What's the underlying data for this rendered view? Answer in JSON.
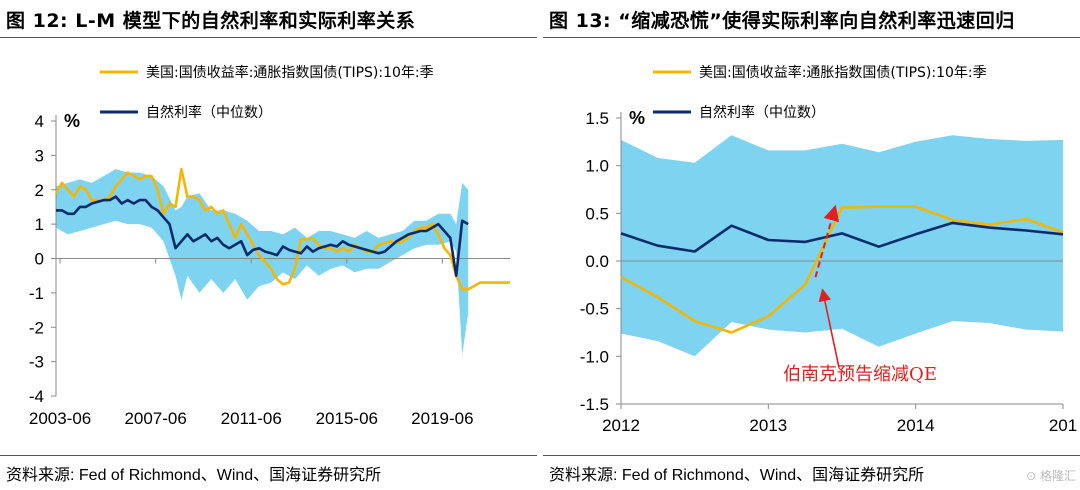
{
  "left": {
    "title": "图 12:  L-M 模型下的自然利率和实际利率关系",
    "source": "资料来源:  Fed of Richmond、Wind、国海证券研究所",
    "chart_data": {
      "type": "line",
      "unit_label": "%",
      "ylim": [
        -4,
        4
      ],
      "yticks": [
        "4",
        "3",
        "2",
        "1",
        "0",
        "-1",
        "-2",
        "-3",
        "-4"
      ],
      "yticks_values": [
        4,
        3,
        2,
        1,
        0,
        -1,
        -2,
        -3,
        -4
      ],
      "xlim": [
        2003.25,
        2022.25
      ],
      "xticks": [
        "2003-06",
        "2007-06",
        "2011-06",
        "2015-06",
        "2019-06"
      ],
      "xticks_values": [
        2003.42,
        2007.42,
        2011.42,
        2015.42,
        2019.42
      ],
      "series": [
        {
          "name": "美国:国债收益率:通胀指数国债(TIPS):10年:季",
          "color": "#f2b705",
          "x": [
            2003.25,
            2003.5,
            2003.75,
            2004.0,
            2004.25,
            2004.5,
            2004.75,
            2005.0,
            2005.25,
            2005.5,
            2005.75,
            2006.0,
            2006.25,
            2006.5,
            2006.75,
            2007.0,
            2007.25,
            2007.5,
            2007.75,
            2008.0,
            2008.25,
            2008.5,
            2008.75,
            2009.0,
            2009.25,
            2009.5,
            2009.75,
            2010.0,
            2010.25,
            2010.5,
            2010.75,
            2011.0,
            2011.25,
            2011.5,
            2011.75,
            2012.0,
            2012.25,
            2012.5,
            2012.75,
            2013.0,
            2013.25,
            2013.5,
            2013.75,
            2014.0,
            2014.25,
            2014.5,
            2014.75,
            2015.0,
            2015.25,
            2015.5,
            2015.75,
            2016.0,
            2016.25,
            2016.5,
            2016.75,
            2017.0,
            2017.25,
            2017.5,
            2017.75,
            2018.0,
            2018.25,
            2018.5,
            2018.75,
            2019.0,
            2019.25,
            2019.5,
            2019.75,
            2020.0,
            2020.25,
            2020.5,
            2020.75,
            2021.0,
            2021.25,
            2021.5,
            2021.75,
            2022.0,
            2022.25
          ],
          "values": [
            1.9,
            2.2,
            2.0,
            1.8,
            2.1,
            2.0,
            1.7,
            1.7,
            1.7,
            1.8,
            2.1,
            2.3,
            2.5,
            2.4,
            2.3,
            2.4,
            2.4,
            2.0,
            1.3,
            1.6,
            1.5,
            2.6,
            1.8,
            1.8,
            1.7,
            1.4,
            1.5,
            1.3,
            1.4,
            1.0,
            0.6,
            1.0,
            0.7,
            0.4,
            0.1,
            -0.1,
            -0.3,
            -0.6,
            -0.75,
            -0.7,
            -0.3,
            0.55,
            0.56,
            0.58,
            0.4,
            0.3,
            0.3,
            0.2,
            0.3,
            0.2,
            0.4,
            0.3,
            0.2,
            0.2,
            0.4,
            0.45,
            0.5,
            0.45,
            0.5,
            0.6,
            0.8,
            0.9,
            0.9,
            1.0,
            0.7,
            0.3,
            0.1,
            -0.5,
            -0.9,
            -0.9,
            -0.8,
            -0.7,
            -0.7,
            -0.7,
            -0.7,
            -0.7,
            -0.7
          ]
        },
        {
          "name": "自然利率（中位数）",
          "color": "#0d2b6b",
          "x": [
            2003.25,
            2003.5,
            2003.75,
            2004.0,
            2004.25,
            2004.5,
            2004.75,
            2005.0,
            2005.25,
            2005.5,
            2005.75,
            2006.0,
            2006.25,
            2006.5,
            2006.75,
            2007.0,
            2007.25,
            2007.5,
            2007.75,
            2008.0,
            2008.25,
            2008.5,
            2008.75,
            2009.0,
            2009.25,
            2009.5,
            2009.75,
            2010.0,
            2010.25,
            2010.5,
            2010.75,
            2011.0,
            2011.25,
            2011.5,
            2011.75,
            2012.0,
            2012.25,
            2012.5,
            2012.75,
            2013.0,
            2013.25,
            2013.5,
            2013.75,
            2014.0,
            2014.25,
            2014.5,
            2014.75,
            2015.0,
            2015.25,
            2015.5,
            2015.75,
            2016.0,
            2016.25,
            2016.5,
            2016.75,
            2017.0,
            2017.25,
            2017.5,
            2017.75,
            2018.0,
            2018.25,
            2018.5,
            2018.75,
            2019.0,
            2019.25,
            2019.5,
            2019.75,
            2020.0,
            2020.25,
            2020.5
          ],
          "values": [
            1.4,
            1.4,
            1.3,
            1.3,
            1.5,
            1.5,
            1.6,
            1.65,
            1.7,
            1.7,
            1.8,
            1.6,
            1.7,
            1.6,
            1.7,
            1.7,
            1.5,
            1.4,
            1.2,
            1.0,
            0.3,
            0.5,
            0.7,
            0.5,
            0.6,
            0.7,
            0.5,
            0.6,
            0.4,
            0.3,
            0.4,
            0.5,
            0.1,
            0.25,
            0.3,
            0.2,
            0.15,
            0.1,
            0.35,
            0.25,
            0.2,
            0.15,
            0.35,
            0.2,
            0.3,
            0.35,
            0.4,
            0.35,
            0.5,
            0.4,
            0.35,
            0.3,
            0.25,
            0.2,
            0.15,
            0.2,
            0.35,
            0.5,
            0.6,
            0.7,
            0.75,
            0.8,
            0.8,
            0.9,
            1.0,
            0.8,
            0.6,
            -0.5,
            1.1,
            1.0
          ]
        }
      ],
      "band": {
        "x": [
          2003.25,
          2003.75,
          2004.25,
          2004.75,
          2005.25,
          2005.75,
          2006.25,
          2006.75,
          2007.25,
          2007.75,
          2008.25,
          2008.5,
          2008.75,
          2009.25,
          2009.75,
          2010.25,
          2010.75,
          2011.25,
          2011.75,
          2012.25,
          2012.75,
          2013.25,
          2013.75,
          2014.25,
          2014.75,
          2015.25,
          2015.75,
          2016.25,
          2016.75,
          2017.25,
          2017.75,
          2018.25,
          2018.75,
          2019.25,
          2019.75,
          2020.0,
          2020.25,
          2020.5
        ],
        "upper": [
          2.1,
          2.2,
          2.3,
          2.2,
          2.4,
          2.6,
          2.5,
          2.5,
          2.4,
          2.1,
          1.4,
          1.5,
          1.8,
          1.9,
          1.4,
          1.4,
          1.3,
          1.1,
          0.8,
          0.8,
          0.7,
          0.9,
          0.6,
          0.8,
          0.8,
          0.7,
          0.6,
          0.8,
          0.6,
          0.7,
          0.8,
          1.1,
          1.1,
          1.3,
          1.3,
          1.0,
          2.2,
          2.0
        ],
        "lower": [
          0.9,
          0.7,
          0.8,
          0.9,
          1.0,
          1.1,
          1.0,
          1.0,
          0.9,
          0.5,
          -0.5,
          -1.2,
          -0.5,
          -1.0,
          -0.6,
          -1.0,
          -0.6,
          -1.2,
          -0.8,
          -0.7,
          -0.4,
          -0.6,
          -0.2,
          -0.5,
          -0.3,
          -0.2,
          -0.4,
          -0.3,
          -0.3,
          -0.1,
          0.1,
          0.3,
          0.4,
          0.4,
          0.5,
          0.2,
          -2.8,
          -1.6
        ]
      }
    }
  },
  "right": {
    "title": "图 13:  “缩减恐慌”使得实际利率向自然利率迅速回归",
    "source": "资料来源:  Fed of Richmond、Wind、国海证券研究所",
    "annotation": "伯南克预告缩减QE",
    "chart_data": {
      "type": "line",
      "unit_label": "%",
      "ylim": [
        -1.5,
        1.5
      ],
      "yticks": [
        "1.5",
        "1.0",
        "0.5",
        "0.0",
        "-0.5",
        "-1.0",
        "-1.5"
      ],
      "yticks_values": [
        1.5,
        1.0,
        0.5,
        0.0,
        -0.5,
        -1.0,
        -1.5
      ],
      "xlim": [
        2012.0,
        2015.0
      ],
      "xticks": [
        "2012",
        "2013",
        "2014",
        "201"
      ],
      "xticks_values": [
        2012.0,
        2013.0,
        2014.0,
        2015.0
      ],
      "series": [
        {
          "name": "美国:国债收益率:通胀指数国债(TIPS):10年:季",
          "color": "#f2b705",
          "x": [
            2012.0,
            2012.25,
            2012.5,
            2012.75,
            2013.0,
            2013.25,
            2013.5,
            2013.75,
            2014.0,
            2014.25,
            2014.5,
            2014.75,
            2015.0
          ],
          "values": [
            -0.17,
            -0.38,
            -0.63,
            -0.75,
            -0.58,
            -0.25,
            0.56,
            0.57,
            0.57,
            0.43,
            0.38,
            0.44,
            0.3
          ]
        },
        {
          "name": "自然利率（中位数）",
          "color": "#0d2b6b",
          "x": [
            2012.0,
            2012.25,
            2012.5,
            2012.75,
            2013.0,
            2013.25,
            2013.5,
            2013.75,
            2014.0,
            2014.25,
            2014.5,
            2014.75,
            2015.0
          ],
          "values": [
            0.29,
            0.16,
            0.1,
            0.37,
            0.22,
            0.2,
            0.29,
            0.15,
            0.28,
            0.4,
            0.35,
            0.32,
            0.28
          ]
        }
      ],
      "band": {
        "x": [
          2012.0,
          2012.25,
          2012.5,
          2012.75,
          2013.0,
          2013.25,
          2013.5,
          2013.75,
          2014.0,
          2014.25,
          2014.5,
          2014.75,
          2015.0
        ],
        "upper": [
          1.27,
          1.08,
          1.03,
          1.32,
          1.16,
          1.16,
          1.23,
          1.14,
          1.25,
          1.32,
          1.28,
          1.26,
          1.27
        ],
        "lower": [
          -0.76,
          -0.84,
          -1.0,
          -0.64,
          -0.72,
          -0.75,
          -0.71,
          -0.9,
          -0.76,
          -0.63,
          -0.65,
          -0.72,
          -0.74
        ]
      },
      "arrow_red_dashed": {
        "from": [
          2013.32,
          -0.17
        ],
        "to": [
          2013.45,
          0.55
        ]
      },
      "arrow_red_solid": {
        "from": [
          2013.48,
          -1.12
        ],
        "to": [
          2013.37,
          -0.32
        ]
      }
    }
  },
  "colors": {
    "band": "#7ed3f0",
    "tips": "#f2b705",
    "natural": "#0d2b6b",
    "annotation": "#e02020"
  }
}
